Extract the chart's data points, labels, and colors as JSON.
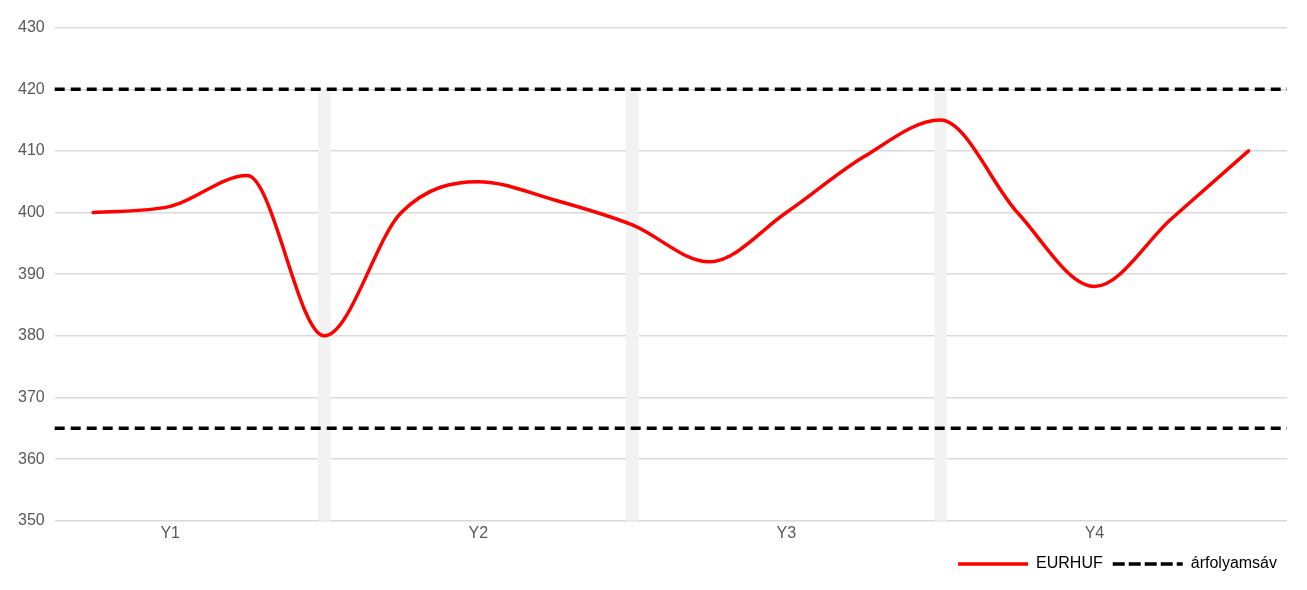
{
  "chart_data": {
    "type": "line",
    "categories": [
      null,
      "Y1",
      null,
      null,
      null,
      "Y2",
      null,
      null,
      null,
      "Y3",
      null,
      null,
      null,
      "Y4",
      null,
      null
    ],
    "series": [
      {
        "name": "EURHUF",
        "color": "#ff0000",
        "values": [
          400,
          401,
          406,
          380,
          400,
          405,
          402,
          398,
          392,
          400,
          409,
          415,
          400,
          388,
          399,
          410
        ]
      },
      {
        "type": "bar",
        "color": "#f2f2f2",
        "values": [
          null,
          null,
          null,
          420,
          null,
          null,
          null,
          420,
          null,
          null,
          null,
          420,
          null,
          null,
          null,
          null
        ]
      }
    ],
    "ylim": [
      350,
      430
    ],
    "yticks": [
      350,
      360,
      370,
      380,
      390,
      400,
      410,
      420,
      430
    ],
    "ref_lines": [
      {
        "axis": "y",
        "value": 420,
        "label": "árfolyamsáv",
        "color": "#000000",
        "line_style": "dashed"
      },
      {
        "axis": "y",
        "value": 365,
        "color": "#000000",
        "line_style": "dashed"
      }
    ],
    "grid": "y",
    "legend": "bottom right",
    "marker": "none",
    "line_style": "solid"
  }
}
